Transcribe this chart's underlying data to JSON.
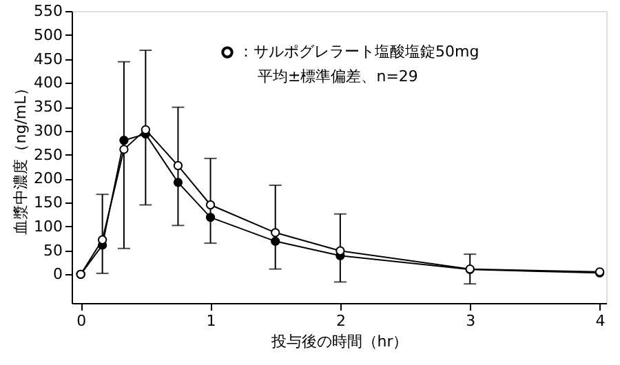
{
  "chart_data": {
    "type": "line",
    "xlabel": "投与後の時間（hr）",
    "ylabel": "血漿中濃度（ng/mL）",
    "x": [
      0,
      0.167,
      0.333,
      0.5,
      0.75,
      1,
      1.5,
      2,
      3,
      4
    ],
    "series": [
      {
        "name": "：サルポグレラート塩酸塩錠50mg",
        "color": "#000000",
        "marker": "circle",
        "values": [
          0,
          72,
          261,
          302,
          227,
          145,
          87,
          49,
          11,
          5
        ],
        "errors": [
          null,
          [
            2,
            167
          ],
          [
            54,
            444
          ],
          [
            145,
            468
          ],
          [
            102,
            349
          ],
          [
            65,
            242
          ],
          [
            11,
            186
          ],
          [
            -16,
            126
          ],
          [
            -20,
            42
          ],
          null
        ]
      },
      {
        "color": "#000000",
        "marker": "circle",
        "values": [
          0,
          61,
          280,
          293,
          192,
          119,
          69,
          39,
          10,
          3
        ]
      }
    ],
    "xlim": [
      -0.07,
      4.05
    ],
    "ylim": [
      -60,
      550
    ],
    "xticks": [
      0,
      1,
      2,
      3,
      4
    ],
    "yticks": [
      0,
      50,
      100,
      150,
      200,
      250,
      300,
      350,
      400,
      450,
      500,
      550
    ],
    "grid": false,
    "legend": "top right",
    "annotations": [
      "平均±標準偏差、n=29"
    ]
  }
}
